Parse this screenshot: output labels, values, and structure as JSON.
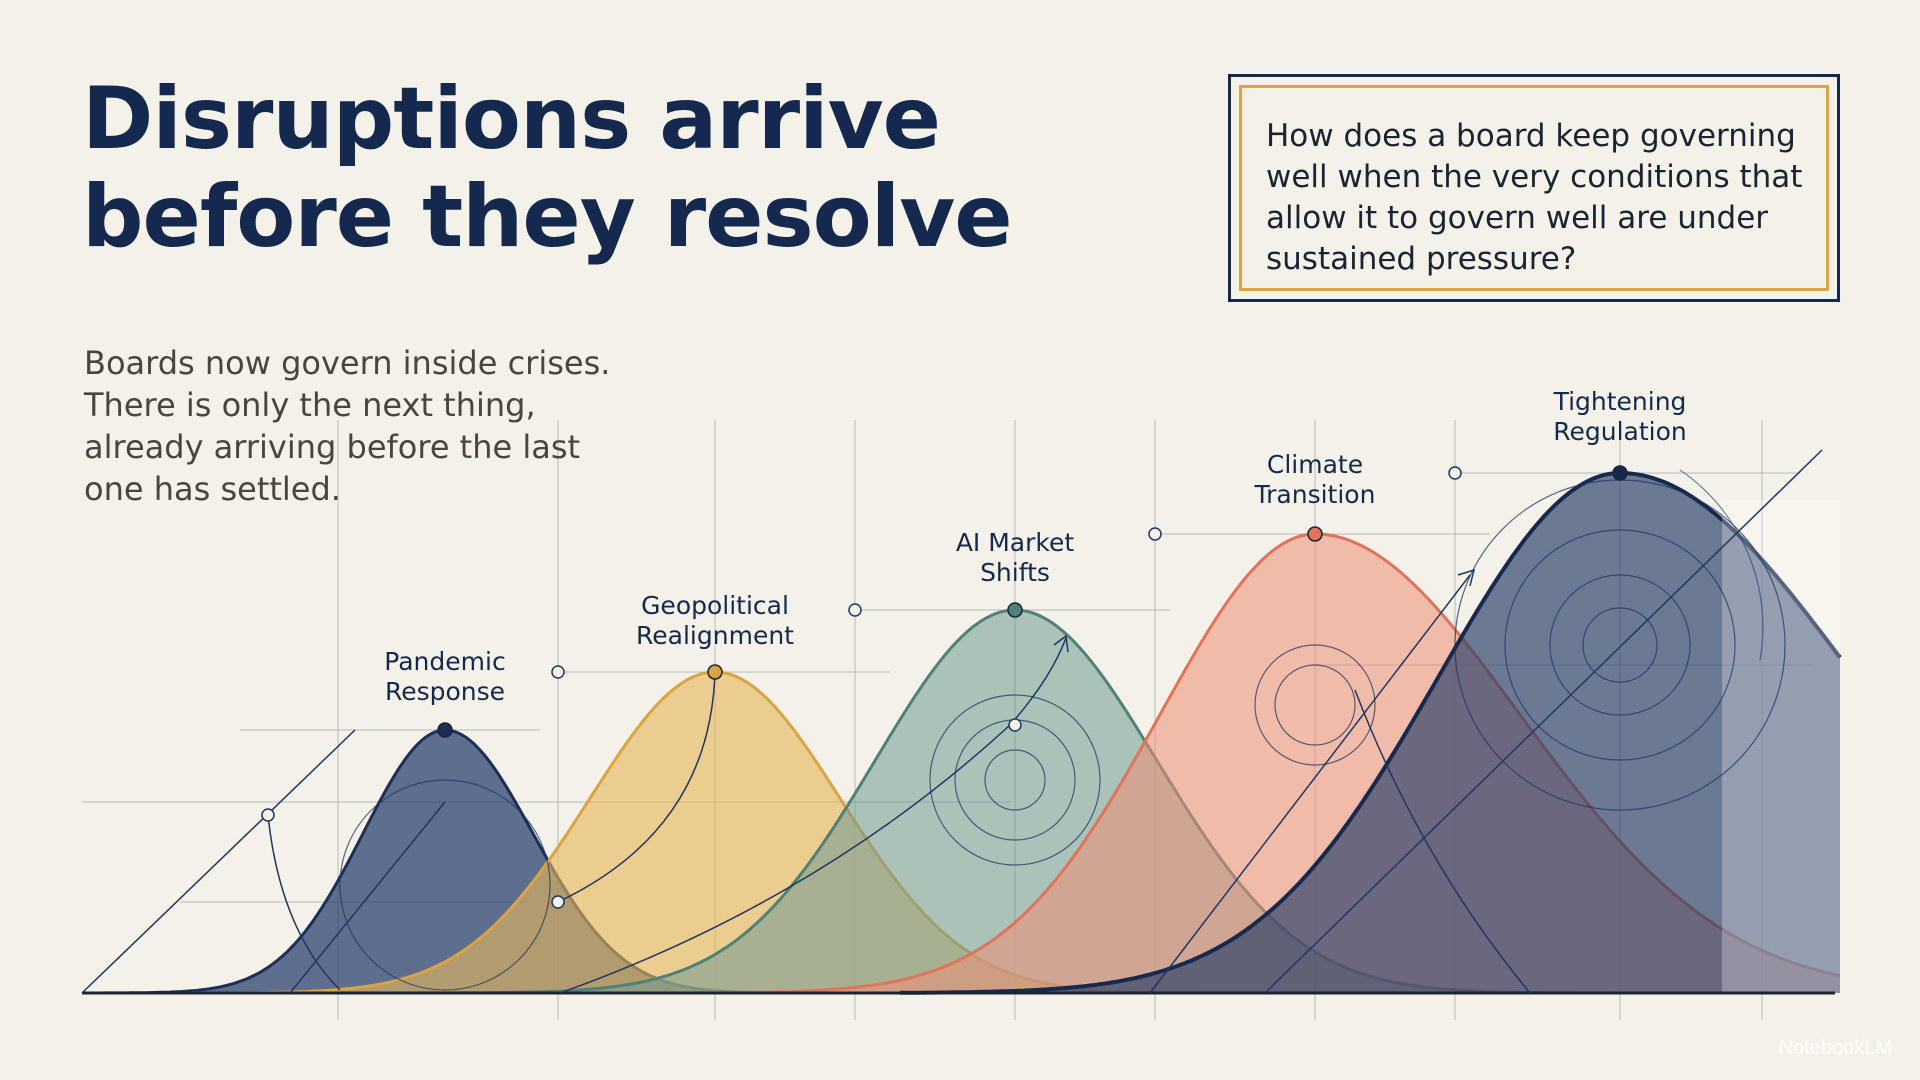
{
  "title": {
    "line1": "Disruptions arrive",
    "line2": "before they resolve"
  },
  "subtitle": {
    "lines": [
      "Boards now govern inside crises.",
      "There is only the next thing,",
      "already arriving before the last",
      "one has settled."
    ]
  },
  "question": {
    "lines": [
      "How does a board keep governing",
      "well when the very conditions that",
      "allow it to govern well are under",
      "sustained pressure?"
    ]
  },
  "colors": {
    "navy": "#1f3763",
    "mustard": "#e1b14f",
    "teal": "#5f8f86",
    "coral": "#e97f67",
    "slate": "#3b4d73",
    "background": "#f4f1e8"
  },
  "curves": [
    {
      "id": "pandemic",
      "label_lines": [
        "Pandemic",
        "Response"
      ],
      "fill": "#2b4170",
      "stroke": "#1c2f57",
      "opacity": 0.75
    },
    {
      "id": "geopolitical",
      "label_lines": [
        "Geopolitical",
        "Realignment"
      ],
      "fill": "#e6b65a",
      "stroke": "#d9a441",
      "opacity": 0.62
    },
    {
      "id": "ai",
      "label_lines": [
        "AI Market",
        "Shifts"
      ],
      "fill": "#6f9b92",
      "stroke": "#4f8177",
      "opacity": 0.55
    },
    {
      "id": "climate",
      "label_lines": [
        "Climate",
        "Transition"
      ],
      "fill": "#ee8e76",
      "stroke": "#e0735a",
      "opacity": 0.55
    },
    {
      "id": "regulation",
      "label_lines": [
        "Tightening",
        "Regulation"
      ],
      "fill": "#2b3f68",
      "stroke": "#16294e",
      "opacity": 0.68
    }
  ],
  "watermark": "NotebookLM"
}
